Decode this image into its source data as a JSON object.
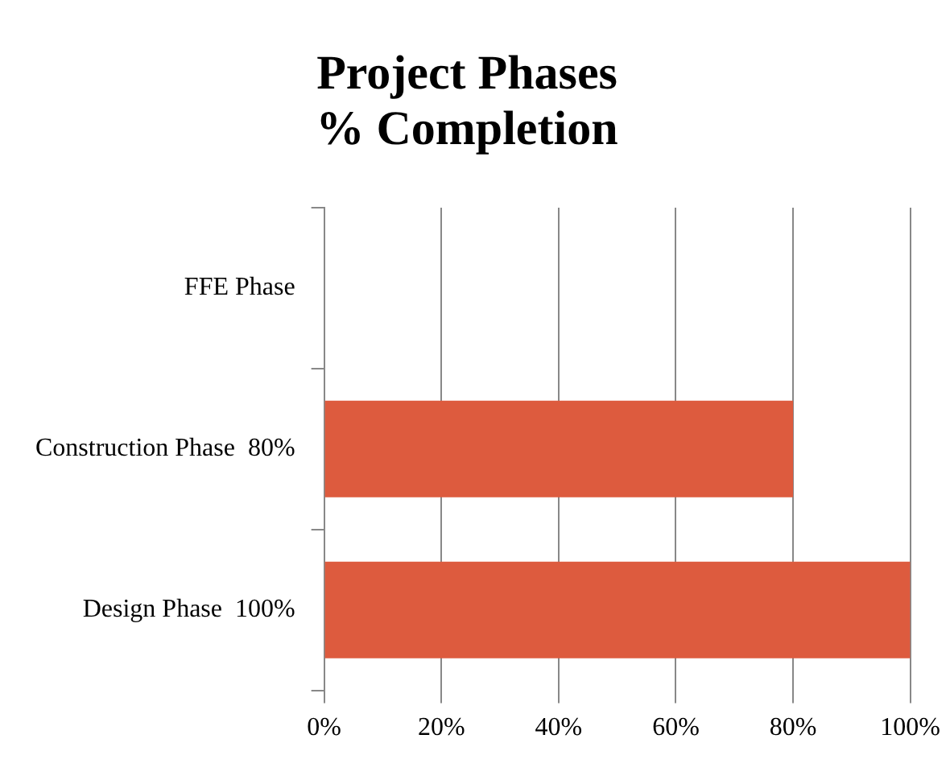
{
  "chart_data": {
    "type": "bar",
    "orientation": "horizontal",
    "title": "Project Phases\n% Completion",
    "categories": [
      "FFE Phase",
      "Construction Phase  80%",
      "Design Phase  100%"
    ],
    "values": [
      0,
      80,
      100
    ],
    "color": "#dd5b3e",
    "xlim": [
      0,
      100
    ],
    "xticks": [
      {
        "value": 0,
        "label": "0%"
      },
      {
        "value": 20,
        "label": "20%"
      },
      {
        "value": 40,
        "label": "40%"
      },
      {
        "value": 60,
        "label": "60%"
      },
      {
        "value": 80,
        "label": "80%"
      },
      {
        "value": 100,
        "label": "100%"
      }
    ],
    "grid": "x"
  }
}
